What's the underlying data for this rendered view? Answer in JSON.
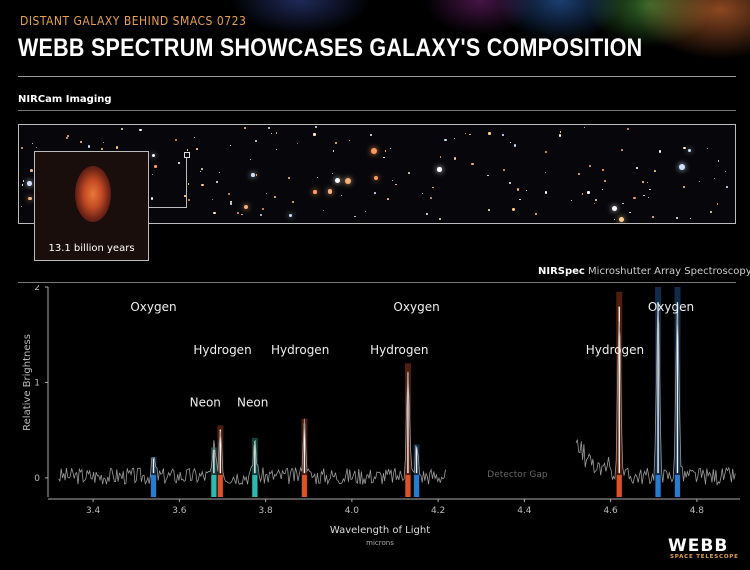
{
  "header": {
    "kicker": "DISTANT GALAXY BEHIND SMACS 0723",
    "title": "WEBB SPECTRUM SHOWCASES GALAXY'S COMPOSITION"
  },
  "imaging": {
    "label": "NIRCam Imaging",
    "inset_caption": "13.1 billion years"
  },
  "spectroscopy": {
    "label_bold": "NIRSpec",
    "label_rest": " Microshutter Array Spectroscopy"
  },
  "chart_data": {
    "type": "line",
    "xlabel": "Wavelength of Light",
    "xunits": "microns",
    "ylabel": "Relative Brightness",
    "xlim": [
      3.3,
      4.9
    ],
    "ylim": [
      -0.2,
      2
    ],
    "xticks": [
      "3.4",
      "3.6",
      "3.8",
      "4.0",
      "4.2",
      "4.4",
      "4.6",
      "4.8"
    ],
    "yticks": [
      "0",
      "1",
      "2"
    ],
    "detector_gap": {
      "label": "Detector Gap",
      "from": 4.22,
      "to": 4.52
    },
    "lines": [
      {
        "element": "Oxygen",
        "x": 3.54,
        "peak": 0.22,
        "color": "#2a7fd6"
      },
      {
        "element": "Neon",
        "x": 3.68,
        "peak": 0.32,
        "color": "#2fbfb6"
      },
      {
        "element": "Hydrogen",
        "x": 3.695,
        "peak": 0.55,
        "color": "#e3562a"
      },
      {
        "element": "Neon",
        "x": 3.775,
        "peak": 0.42,
        "color": "#2fbfb6"
      },
      {
        "element": "Hydrogen",
        "x": 3.89,
        "peak": 0.62,
        "color": "#e3562a"
      },
      {
        "element": "Hydrogen",
        "x": 4.13,
        "peak": 1.2,
        "color": "#e3562a"
      },
      {
        "element": "Oxygen",
        "x": 4.15,
        "peak": 0.35,
        "color": "#2a7fd6"
      },
      {
        "element": "Hydrogen",
        "x": 4.62,
        "peak": 1.95,
        "color": "#e3562a"
      },
      {
        "element": "Oxygen",
        "x": 4.71,
        "peak": 2.0,
        "color": "#2a7fd6"
      },
      {
        "element": "Oxygen",
        "x": 4.755,
        "peak": 2.0,
        "color": "#2a7fd6"
      }
    ],
    "annotations": [
      {
        "text": "Oxygen",
        "x": 3.54,
        "y": 1.75
      },
      {
        "text": "Hydrogen",
        "x": 3.7,
        "y": 1.3
      },
      {
        "text": "Hydrogen",
        "x": 3.88,
        "y": 1.3
      },
      {
        "text": "Hydrogen",
        "x": 4.11,
        "y": 1.3
      },
      {
        "text": "Neon",
        "x": 3.66,
        "y": 0.75
      },
      {
        "text": "Neon",
        "x": 3.77,
        "y": 0.75
      },
      {
        "text": "Oxygen",
        "x": 4.15,
        "y": 1.75
      },
      {
        "text": "Hydrogen",
        "x": 4.61,
        "y": 1.3
      },
      {
        "text": "Oxygen",
        "x": 4.74,
        "y": 1.75
      }
    ]
  },
  "logo": {
    "name": "WEBB",
    "sub": "SPACE TELESCOPE"
  }
}
